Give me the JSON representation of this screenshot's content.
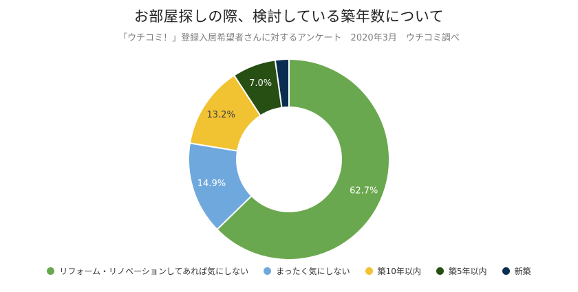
{
  "chart_data": {
    "type": "pie",
    "style": "donut",
    "title": "お部屋探しの際、検討している築年数について",
    "subtitle": "「ウチコミ！」登録入居希望者さんに対するアンケート　2020年3月　ウチコミ調べ",
    "legend_position": "bottom",
    "slices": [
      {
        "label": "リフォーム・リノベーションしてあれば気にしない",
        "value": 62.7,
        "display": "62.7%",
        "color": "#6aa84f"
      },
      {
        "label": "まったく気にしない",
        "value": 14.9,
        "display": "14.9%",
        "color": "#6fa8dc"
      },
      {
        "label": "築10年以内",
        "value": 13.2,
        "display": "13.2%",
        "color": "#f1c232"
      },
      {
        "label": "築5年以内",
        "value": 7.0,
        "display": "7.0%",
        "color": "#274e13"
      },
      {
        "label": "新築",
        "value": 2.2,
        "display": "",
        "color": "#0b2d4f"
      }
    ]
  }
}
